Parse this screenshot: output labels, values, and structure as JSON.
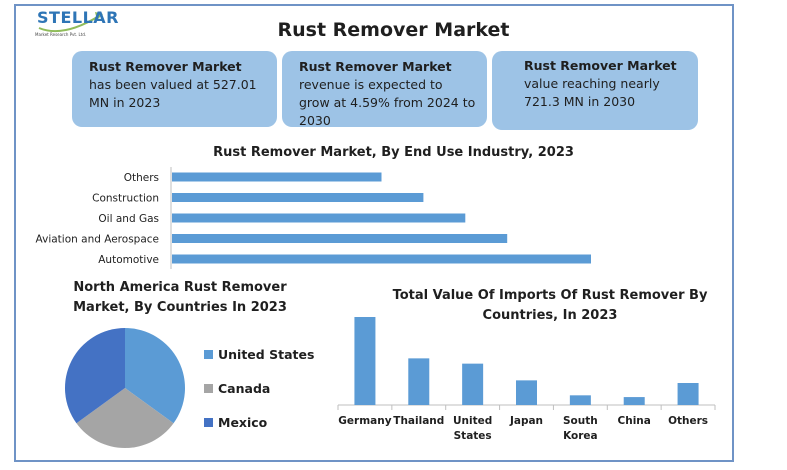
{
  "header": {
    "logo_text": "STELLAR",
    "logo_subtext": "Market Research Pvt. Ltd.",
    "title": "Rust Remover Market"
  },
  "highlights": [
    {
      "bold": "Rust Remover Market",
      "text": " has been valued at 527.01 MN in 2023"
    },
    {
      "bold": "Rust Remover Market",
      "text": " revenue is expected to grow at 4.59% from 2024 to 2030"
    },
    {
      "bold": "Rust Remover Market",
      "text": " value reaching nearly 721.3 MN in 2030"
    }
  ],
  "colors": {
    "bar": "#5b9bd5",
    "box": "#9dc3e6",
    "frame": "#6f93c6",
    "axis": "#bfbfbf"
  },
  "chart_data": [
    {
      "type": "bar",
      "orientation": "horizontal",
      "title": "Rust Remover Market, By End Use Industry, 2023",
      "categories": [
        "Others",
        "Construction",
        "Oil and Gas",
        "Aviation and Aerospace",
        "Automotive"
      ],
      "values": [
        5,
        6,
        7,
        8,
        10
      ],
      "xlim": [
        0,
        10
      ],
      "grid": false,
      "legend": "none",
      "value_axis_labels": false,
      "bar_color": "#5b9bd5"
    },
    {
      "type": "pie",
      "title": "North America Rust Remover Market, By Countries In 2023",
      "categories": [
        "United States",
        "Canada",
        "Mexico"
      ],
      "values": [
        35,
        30,
        35
      ],
      "colors": [
        "#5b9bd5",
        "#a5a5a5",
        "#4472c4"
      ],
      "legend": "right"
    },
    {
      "type": "bar",
      "orientation": "vertical",
      "title": "Total Value Of Imports Of Rust Remover By Countries, In 2023",
      "categories": [
        "Germany",
        "Thailand",
        "United States",
        "Japan",
        "South Korea",
        "China",
        "Others"
      ],
      "values": [
        100,
        53,
        47,
        28,
        11,
        9,
        25
      ],
      "ylim": [
        0,
        100
      ],
      "grid": false,
      "legend": "none",
      "value_axis_labels": false,
      "bar_color": "#5b9bd5"
    }
  ]
}
